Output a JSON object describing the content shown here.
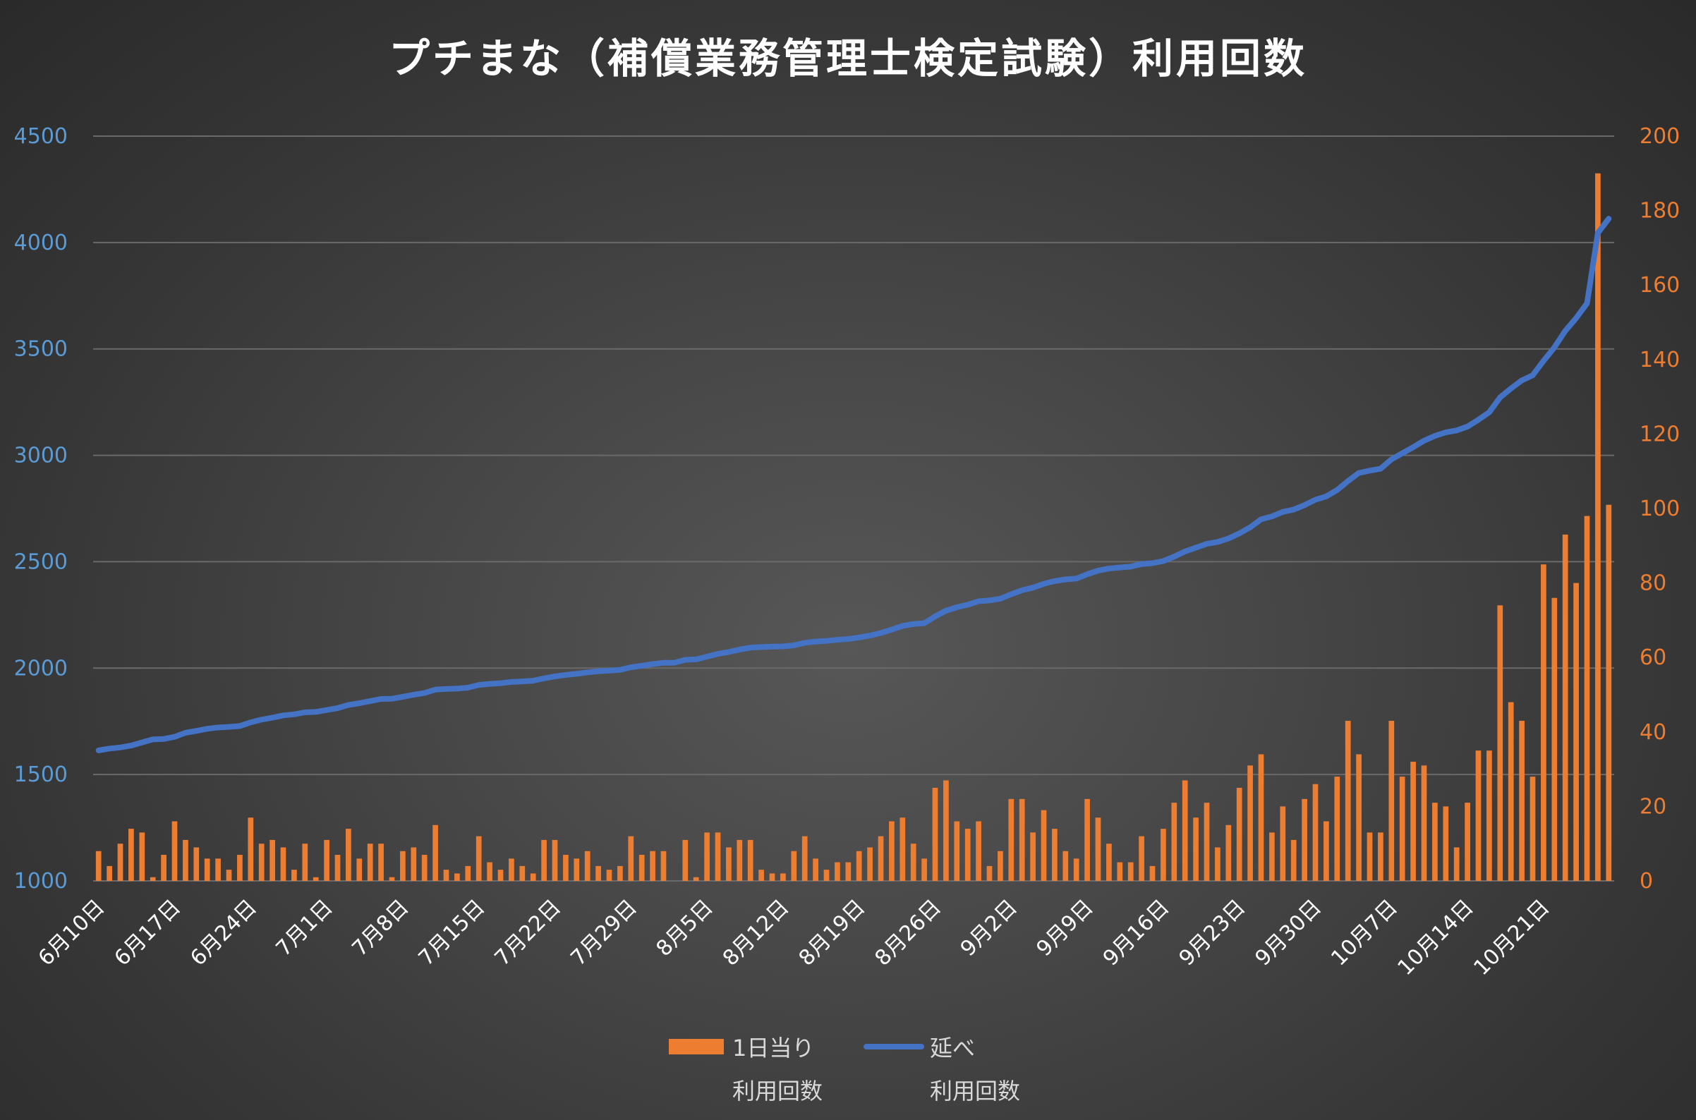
{
  "chart_data": {
    "type": "bar+line",
    "title": "プチまな（補償業務管理士検定試験）利用回数",
    "legend_position": "bottom",
    "grid": true,
    "colors": {
      "bar": "#ed7d31",
      "line": "#4472c4",
      "left_axis": "#5b9bd5",
      "right_axis": "#ed7d31",
      "title": "#ffffff",
      "x_labels": "#ffffff",
      "legend_text": "#d9d9d9",
      "grid": "#6a6a6a"
    },
    "axes": {
      "left": {
        "min": 1000,
        "max": 4500,
        "ticks": [
          "1000",
          "1500",
          "2000",
          "2500",
          "3000",
          "3500",
          "4000",
          "4500"
        ]
      },
      "right": {
        "min": 0,
        "max": 200,
        "ticks": [
          "0",
          "20",
          "40",
          "60",
          "80",
          "100",
          "120",
          "140",
          "160",
          "180",
          "200"
        ]
      }
    },
    "x_labels": [
      "6月10日",
      "6月17日",
      "6月24日",
      "7月1日",
      "7月8日",
      "7月15日",
      "7月22日",
      "7月29日",
      "8月5日",
      "8月12日",
      "8月19日",
      "8月26日",
      "9月2日",
      "9月9日",
      "9月16日",
      "9月23日",
      "9月30日",
      "10月7日",
      "10月14日",
      "10月21日"
    ],
    "categories_count": 140,
    "series": [
      {
        "name": "1日当り\n利用回数",
        "axis": "right",
        "type": "bar",
        "values": [
          8,
          4,
          10,
          14,
          13,
          1,
          7,
          16,
          11,
          9,
          6,
          6,
          3,
          7,
          17,
          10,
          11,
          9,
          3,
          10,
          1,
          11,
          7,
          14,
          6,
          10,
          10,
          1,
          8,
          9,
          7,
          15,
          3,
          2,
          4,
          12,
          5,
          3,
          6,
          4,
          2,
          11,
          11,
          7,
          6,
          8,
          4,
          3,
          4,
          12,
          7,
          8,
          8,
          0,
          11,
          1,
          13,
          13,
          9,
          11,
          11,
          3,
          2,
          2,
          8,
          12,
          6,
          3,
          5,
          5,
          8,
          9,
          12,
          16,
          17,
          10,
          6,
          25,
          27,
          16,
          14,
          16,
          4,
          8,
          22,
          22,
          13,
          19,
          14,
          8,
          6,
          22,
          17,
          10,
          5,
          5,
          12,
          4,
          14,
          21,
          27,
          17,
          21,
          9,
          15,
          25,
          31,
          34,
          13,
          20,
          11,
          22,
          26,
          16,
          28,
          43,
          34,
          13,
          13,
          43,
          28,
          32,
          31,
          21,
          20,
          9,
          21,
          35,
          35,
          74,
          48,
          43,
          28,
          85,
          76,
          93,
          80,
          98,
          190,
          101
        ]
      },
      {
        "name": "延べ\n利用回数",
        "axis": "left",
        "type": "line",
        "values": [
          1613,
          1622,
          1627,
          1636,
          1651,
          1665,
          1667,
          1677,
          1696,
          1705,
          1715,
          1721,
          1724,
          1728,
          1745,
          1758,
          1767,
          1778,
          1783,
          1792,
          1794,
          1803,
          1812,
          1827,
          1835,
          1845,
          1855,
          1856,
          1865,
          1875,
          1883,
          1899,
          1902,
          1904,
          1908,
          1921,
          1926,
          1929,
          1935,
          1937,
          1941,
          1952,
          1961,
          1968,
          1973,
          1980,
          1985,
          1988,
          1992,
          2004,
          2011,
          2019,
          2025,
          2025,
          2039,
          2041,
          2054,
          2067,
          2076,
          2087,
          2096,
          2099,
          2101,
          2102,
          2107,
          2119,
          2125,
          2128,
          2133,
          2137,
          2144,
          2153,
          2165,
          2181,
          2198,
          2207,
          2211,
          2243,
          2270,
          2286,
          2298,
          2314,
          2318,
          2326,
          2347,
          2366,
          2378,
          2396,
          2409,
          2417,
          2421,
          2441,
          2458,
          2468,
          2473,
          2477,
          2489,
          2493,
          2503,
          2524,
          2548,
          2566,
          2584,
          2593,
          2609,
          2633,
          2662,
          2699,
          2713,
          2734,
          2745,
          2766,
          2791,
          2807,
          2837,
          2879,
          2917,
          2928,
          2937,
          2981,
          3010,
          3038,
          3069,
          3091,
          3108,
          3117,
          3135,
          3167,
          3202,
          3272,
          3314,
          3352,
          3376,
          3444,
          3507,
          3585,
          3645,
          3714,
          4045,
          4112
        ]
      }
    ]
  }
}
